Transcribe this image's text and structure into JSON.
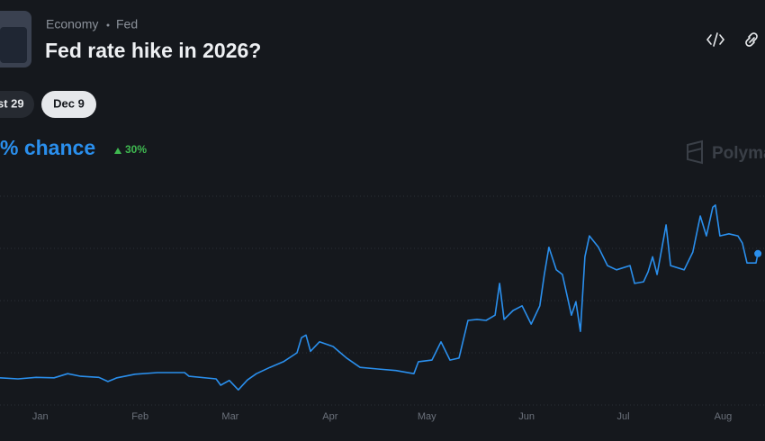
{
  "header": {
    "category": "Economy",
    "tag": "Fed",
    "title": "Fed rate hike in 2026?"
  },
  "date_tabs": [
    "st 29",
    "Dec 9"
  ],
  "chance_label": "% chance",
  "change": "30%",
  "watermark": "Polyma",
  "chart_data": {
    "type": "line",
    "color": "#2a8fed",
    "grid": true,
    "xlim": [
      -12.5,
      225
    ],
    "ylim": [
      0,
      40
    ],
    "yticks": [
      0,
      10,
      20,
      30,
      40
    ],
    "xticks": [
      {
        "value": 0,
        "label": "Jan"
      },
      {
        "value": 31,
        "label": "Feb"
      },
      {
        "value": 59,
        "label": "Mar"
      },
      {
        "value": 90,
        "label": "Apr"
      },
      {
        "value": 120,
        "label": "May"
      },
      {
        "value": 151,
        "label": "Jun"
      },
      {
        "value": 181,
        "label": "Jul"
      },
      {
        "value": 212,
        "label": "Aug"
      }
    ],
    "x": [
      -12.5,
      -6.9,
      -1.3,
      4.3,
      8.5,
      12.6,
      18.2,
      21.0,
      23.8,
      29.4,
      36.4,
      44.8,
      46.2,
      54.6,
      56.0,
      58.7,
      61.5,
      64.3,
      67.1,
      71.3,
      75.5,
      79.7,
      81.1,
      82.5,
      83.9,
      86.7,
      90.9,
      95.1,
      99.3,
      104.8,
      110.4,
      116.0,
      117.4,
      121.6,
      124.4,
      127.2,
      130.0,
      132.8,
      135.6,
      138.4,
      141.2,
      142.6,
      144.0,
      146.8,
      149.6,
      152.4,
      155.1,
      156.5,
      157.9,
      160.2,
      162.1,
      164.9,
      166.3,
      167.7,
      169.1,
      170.5,
      173.3,
      176.1,
      178.9,
      183.1,
      184.5,
      187.3,
      188.7,
      190.1,
      191.5,
      194.3,
      195.7,
      199.9,
      202.6,
      204.9,
      206.8,
      208.8,
      209.6,
      211.0,
      213.8,
      216.6,
      218.0,
      219.4,
      222.2,
      222.8
    ],
    "values": [
      5.2,
      5.0,
      5.3,
      5.2,
      6.0,
      5.5,
      5.3,
      4.5,
      5.2,
      5.9,
      6.2,
      6.2,
      5.5,
      5.0,
      3.8,
      4.7,
      2.9,
      4.8,
      6.0,
      7.2,
      8.3,
      10.0,
      12.9,
      13.4,
      10.3,
      12.1,
      11.2,
      9.0,
      7.2,
      6.9,
      6.6,
      6.0,
      8.3,
      8.6,
      12.1,
      8.6,
      9.0,
      16.2,
      16.4,
      16.2,
      17.2,
      23.3,
      16.4,
      18.1,
      19.0,
      15.5,
      19.0,
      25.0,
      30.2,
      25.9,
      25.0,
      17.2,
      19.8,
      14.1,
      28.4,
      32.4,
      30.2,
      26.7,
      25.9,
      26.7,
      23.3,
      23.6,
      25.5,
      28.4,
      25.0,
      34.5,
      26.7,
      25.9,
      29.3,
      36.2,
      32.4,
      37.9,
      38.3,
      32.4,
      32.8,
      32.4,
      31.0,
      27.2,
      27.2,
      29.0
    ]
  }
}
